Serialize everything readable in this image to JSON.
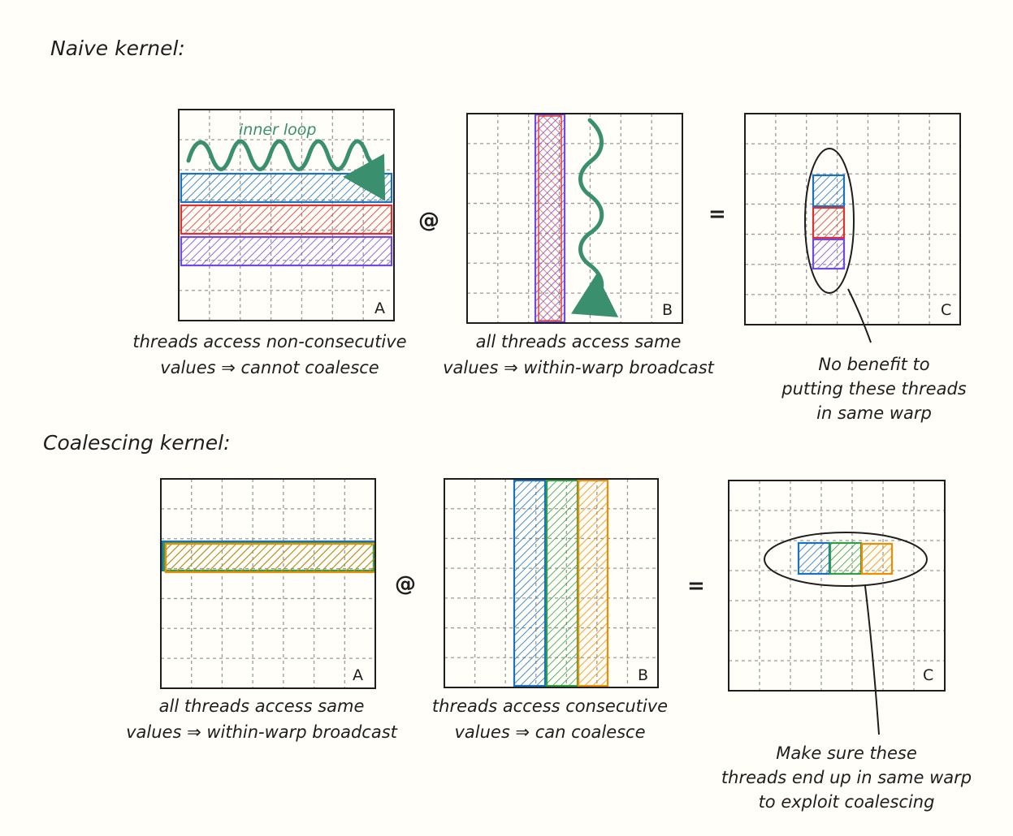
{
  "sections": {
    "naive": {
      "title": "Naive kernel:",
      "matrix_a_label": "A",
      "matrix_b_label": "B",
      "matrix_c_label": "C",
      "operator_matmul": "@",
      "operator_equals": "=",
      "inner_loop_label": "inner loop",
      "caption_a": [
        "threads access non-consecutive",
        "values ⇒ cannot coalesce"
      ],
      "caption_b": [
        "all threads access same",
        "values ⇒ within-warp broadcast"
      ],
      "caption_c": [
        "No benefit to",
        "putting these threads",
        "in same warp"
      ]
    },
    "coalescing": {
      "title": "Coalescing kernel:",
      "matrix_a_label": "A",
      "matrix_b_label": "B",
      "matrix_c_label": "C",
      "operator_matmul": "@",
      "operator_equals": "=",
      "caption_a": [
        "all threads access same",
        "values ⇒ within-warp broadcast"
      ],
      "caption_b": [
        "threads access consecutive",
        "values ⇒ can coalesce"
      ],
      "caption_c": [
        "Make sure these",
        "threads end up in same warp",
        "to exploit coalescing"
      ]
    }
  },
  "colors": {
    "background": "#fffef8",
    "thread_blue": "#1971c2",
    "thread_red": "#e03131",
    "thread_purple": "#7048e8",
    "thread_green": "#2f9e44",
    "thread_orange": "#f08c00",
    "loop_arrow": "#3a8f6e"
  }
}
